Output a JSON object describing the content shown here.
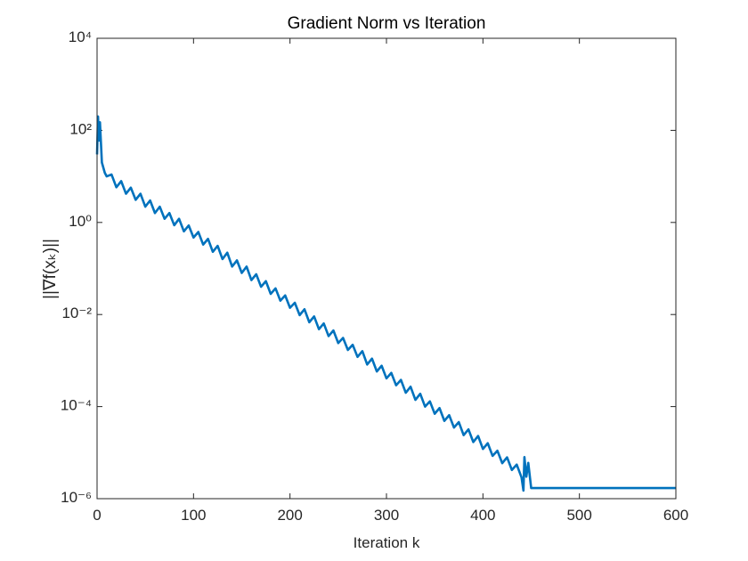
{
  "chart_data": {
    "type": "line",
    "title": "Gradient Norm vs Iteration",
    "x_label": "Iteration k",
    "y_label": "||∇f(xₖ)||",
    "y_scale": "log",
    "grid": false,
    "xlim": [
      0,
      600
    ],
    "xticks": [
      0,
      100,
      200,
      300,
      400,
      500,
      600
    ],
    "ylim": [
      1e-06,
      10000
    ],
    "yticks": [
      {
        "value": 1e-06,
        "label": "10⁻⁶"
      },
      {
        "value": 0.0001,
        "label": "10⁻⁴"
      },
      {
        "value": 0.01,
        "label": "10⁻²"
      },
      {
        "value": 1,
        "label": "10⁰"
      },
      {
        "value": 100,
        "label": "10²"
      },
      {
        "value": 10000,
        "label": "10⁴"
      }
    ],
    "x": [
      0,
      1,
      2,
      3,
      5,
      8,
      10,
      15,
      20,
      25,
      30,
      35,
      40,
      45,
      50,
      55,
      60,
      65,
      70,
      75,
      80,
      85,
      90,
      95,
      100,
      105,
      110,
      115,
      120,
      125,
      130,
      135,
      140,
      145,
      150,
      155,
      160,
      165,
      170,
      175,
      180,
      185,
      190,
      195,
      200,
      205,
      210,
      215,
      220,
      225,
      230,
      235,
      240,
      245,
      250,
      255,
      260,
      265,
      270,
      275,
      280,
      285,
      290,
      295,
      300,
      305,
      310,
      315,
      320,
      325,
      330,
      335,
      340,
      345,
      350,
      355,
      360,
      365,
      370,
      375,
      380,
      385,
      390,
      395,
      400,
      405,
      410,
      415,
      420,
      425,
      430,
      435,
      440,
      442,
      443,
      445,
      447,
      450,
      600
    ],
    "series": [
      {
        "name": "gradient norm",
        "color": "#0072bd",
        "values": [
          30,
          200,
          60,
          150,
          20,
          12,
          10,
          11,
          5.8,
          7.9,
          4.2,
          5.7,
          3.1,
          4.2,
          2.2,
          3.0,
          1.6,
          2.2,
          1.2,
          1.6,
          0.87,
          1.2,
          0.64,
          0.86,
          0.47,
          0.62,
          0.33,
          0.44,
          0.23,
          0.31,
          0.16,
          0.22,
          0.11,
          0.15,
          0.08,
          0.11,
          0.056,
          0.075,
          0.04,
          0.053,
          0.028,
          0.037,
          0.02,
          0.026,
          0.014,
          0.018,
          0.0097,
          0.013,
          0.0068,
          0.0091,
          0.0048,
          0.0064,
          0.0034,
          0.0045,
          0.0024,
          0.0031,
          0.0017,
          0.0022,
          0.0012,
          0.0016,
          0.00082,
          0.0011,
          0.00058,
          0.00077,
          0.00041,
          0.00054,
          0.00029,
          0.00038,
          0.0002,
          0.00027,
          0.00014,
          0.00019,
          0.0001,
          0.00013,
          7e-05,
          9.3e-05,
          4.9e-05,
          6.5e-05,
          3.5e-05,
          4.6e-05,
          2.4e-05,
          3.2e-05,
          1.7e-05,
          2.3e-05,
          1.2e-05,
          1.6e-05,
          8.5e-06,
          1.1e-05,
          5.9e-06,
          7.9e-06,
          4.2e-06,
          5.5e-06,
          2.9e-06,
          1.5e-06,
          8e-06,
          3e-06,
          6e-06,
          1.7e-06,
          1.7e-06
        ]
      }
    ]
  }
}
